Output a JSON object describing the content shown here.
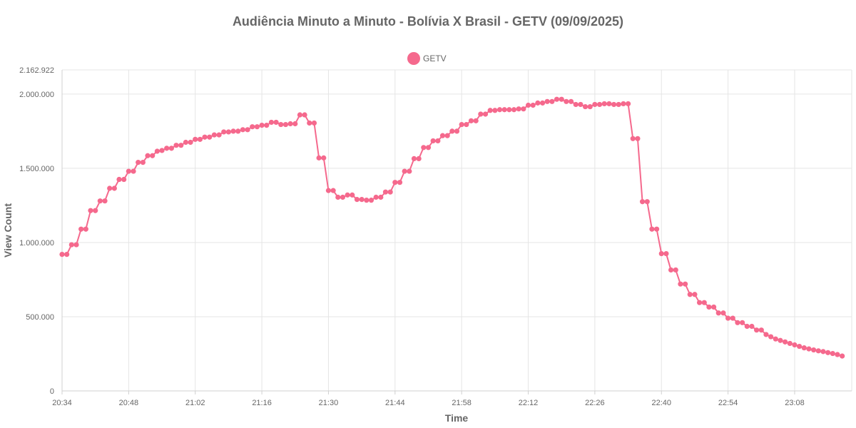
{
  "chart_data": {
    "type": "line",
    "title": "Audiência Minuto a Minuto - Bolívia X Brasil - GETV (09/09/2025)",
    "xlabel": "Time",
    "ylabel": "View Count",
    "ylim": [
      0,
      2162922
    ],
    "y_max_label": "2.162.922",
    "y_ticks": [
      0,
      500000,
      1000000,
      1500000,
      2000000
    ],
    "y_tick_labels": [
      "0",
      "500.000",
      "1.000.000",
      "1.500.000",
      "2.000.000"
    ],
    "x_tick_labels": [
      "20:34",
      "20:48",
      "21:02",
      "21:16",
      "21:30",
      "21:44",
      "21:58",
      "22:12",
      "22:26",
      "22:40",
      "22:54",
      "23:08"
    ],
    "x_range": [
      "20:34",
      "23:20"
    ],
    "grid": true,
    "legend": "top-center",
    "series": [
      {
        "name": "GETV",
        "color": "#f5698d",
        "x_start": "20:34",
        "interval_minutes": 1,
        "values": [
          920000,
          920000,
          985000,
          985000,
          1090000,
          1090000,
          1215000,
          1215000,
          1280000,
          1280000,
          1365000,
          1365000,
          1425000,
          1425000,
          1480000,
          1480000,
          1540000,
          1540000,
          1585000,
          1585000,
          1615000,
          1620000,
          1635000,
          1635000,
          1655000,
          1655000,
          1675000,
          1675000,
          1695000,
          1695000,
          1710000,
          1710000,
          1725000,
          1725000,
          1745000,
          1745000,
          1750000,
          1750000,
          1760000,
          1760000,
          1780000,
          1780000,
          1790000,
          1790000,
          1810000,
          1810000,
          1795000,
          1795000,
          1800000,
          1800000,
          1860000,
          1860000,
          1805000,
          1805000,
          1570000,
          1570000,
          1350000,
          1350000,
          1305000,
          1305000,
          1320000,
          1320000,
          1290000,
          1290000,
          1285000,
          1285000,
          1305000,
          1305000,
          1340000,
          1340000,
          1405000,
          1405000,
          1480000,
          1480000,
          1565000,
          1565000,
          1640000,
          1640000,
          1685000,
          1685000,
          1720000,
          1720000,
          1750000,
          1750000,
          1795000,
          1795000,
          1820000,
          1820000,
          1865000,
          1865000,
          1890000,
          1890000,
          1895000,
          1895000,
          1895000,
          1895000,
          1900000,
          1900000,
          1925000,
          1925000,
          1940000,
          1940000,
          1950000,
          1950000,
          1965000,
          1965000,
          1950000,
          1950000,
          1930000,
          1930000,
          1915000,
          1915000,
          1930000,
          1930000,
          1935000,
          1935000,
          1930000,
          1930000,
          1935000,
          1935000,
          1700000,
          1700000,
          1275000,
          1275000,
          1090000,
          1090000,
          925000,
          925000,
          815000,
          815000,
          720000,
          720000,
          650000,
          650000,
          595000,
          595000,
          565000,
          565000,
          525000,
          525000,
          490000,
          490000,
          460000,
          460000,
          435000,
          435000,
          410000,
          410000,
          380000,
          365000,
          350000,
          340000,
          330000,
          320000,
          310000,
          300000,
          290000,
          283000,
          276000,
          270000,
          265000,
          258000,
          252000,
          245000,
          235000
        ]
      }
    ]
  }
}
